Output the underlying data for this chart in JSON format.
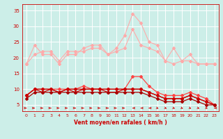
{
  "x": [
    0,
    1,
    2,
    3,
    4,
    5,
    6,
    7,
    8,
    9,
    10,
    11,
    12,
    13,
    14,
    15,
    16,
    17,
    18,
    19,
    20,
    21,
    22,
    23
  ],
  "series": [
    {
      "name": "rafales_max",
      "values": [
        18,
        24,
        21,
        21,
        18,
        21,
        21,
        23,
        24,
        24,
        21,
        23,
        27,
        34,
        31,
        25,
        24,
        19,
        23,
        19,
        21,
        18,
        18,
        18
      ],
      "color": "#ffaaaa",
      "markersize": 2.0,
      "linewidth": 0.8
    },
    {
      "name": "rafales_moy",
      "values": [
        18,
        21,
        22,
        22,
        19,
        22,
        22,
        22,
        23,
        23,
        21,
        22,
        23,
        29,
        24,
        23,
        22,
        19,
        18,
        19,
        19,
        18,
        18,
        18
      ],
      "color": "#ffaaaa",
      "markersize": 2.0,
      "linewidth": 0.8
    },
    {
      "name": "vent_rafale_upper",
      "values": [
        8,
        10,
        10,
        10,
        10,
        10,
        10,
        11,
        10,
        10,
        10,
        10,
        10,
        14,
        14,
        11,
        9,
        8,
        8,
        8,
        9,
        8,
        7,
        5
      ],
      "color": "#ff4444",
      "markersize": 2.0,
      "linewidth": 0.9
    },
    {
      "name": "vent_rafale_mid",
      "values": [
        8,
        10,
        10,
        10,
        9,
        10,
        10,
        10,
        10,
        10,
        10,
        10,
        10,
        10,
        10,
        9,
        8,
        7,
        7,
        7,
        8,
        7,
        6,
        5
      ],
      "color": "#cc0000",
      "markersize": 2.0,
      "linewidth": 0.9
    },
    {
      "name": "vent_moy",
      "values": [
        8,
        10,
        9,
        10,
        9,
        10,
        9,
        10,
        10,
        10,
        9,
        9,
        10,
        10,
        10,
        9,
        8,
        7,
        7,
        7,
        8,
        7,
        6,
        5
      ],
      "color": "#cc0000",
      "markersize": 2.0,
      "linewidth": 0.9
    },
    {
      "name": "vent_min",
      "values": [
        7,
        9,
        9,
        9,
        9,
        9,
        9,
        9,
        9,
        9,
        9,
        9,
        9,
        9,
        9,
        8,
        7,
        6,
        6,
        6,
        7,
        6,
        5,
        5
      ],
      "color": "#aa0000",
      "markersize": 2.0,
      "linewidth": 0.9
    }
  ],
  "wind_dirs": [
    270,
    270,
    270,
    270,
    270,
    270,
    270,
    270,
    270,
    270,
    270,
    270,
    270,
    90,
    90,
    90,
    315,
    315,
    315,
    315,
    315,
    315,
    315,
    90
  ],
  "xlabel": "Vent moyen/en rafales ( km/h )",
  "xlim": [
    -0.5,
    23.5
  ],
  "ylim": [
    3,
    37
  ],
  "yticks": [
    5,
    10,
    15,
    20,
    25,
    30,
    35
  ],
  "xticks": [
    0,
    1,
    2,
    3,
    4,
    5,
    6,
    7,
    8,
    9,
    10,
    11,
    12,
    13,
    14,
    15,
    16,
    17,
    18,
    19,
    20,
    21,
    22,
    23
  ],
  "bg_color": "#cceee8",
  "grid_color": "#ffffff",
  "label_color": "#cc0000"
}
